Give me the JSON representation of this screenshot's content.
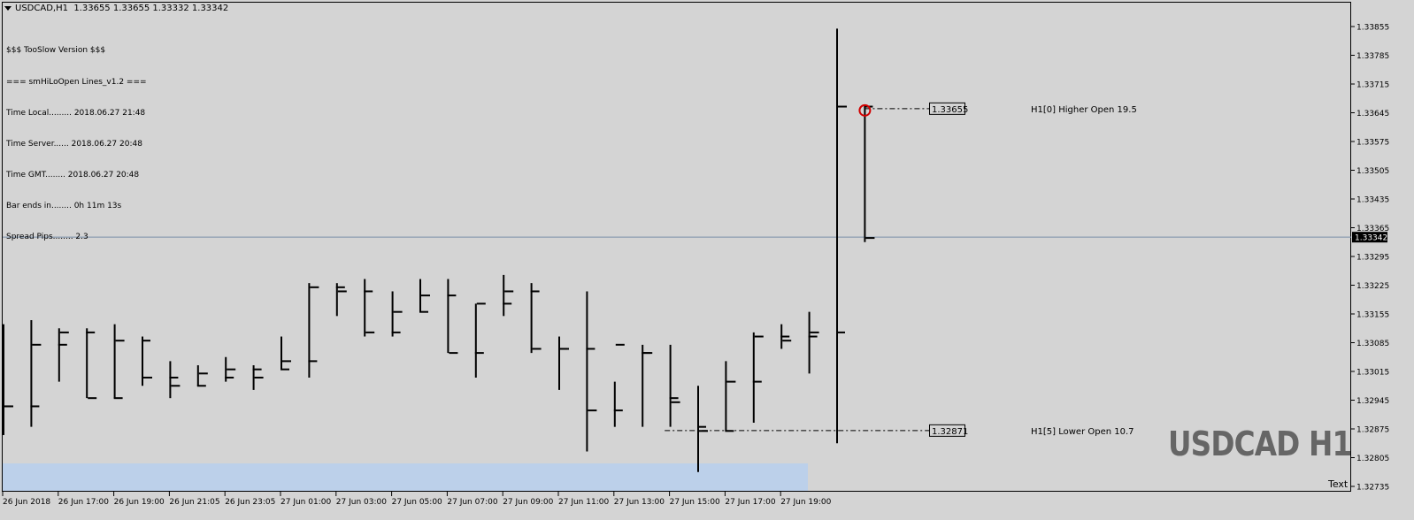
{
  "header": {
    "symbol": "USDCAD,H1",
    "ohlc": "1.33655 1.33655 1.33332 1.33342"
  },
  "info_panel": [
    "$$$ TooSlow Version $$$",
    "=== smHiLoOpen Lines_v1.2 ===",
    "Time Local......... 2018.06.27 21:48",
    "Time Server...... 2018.06.27 20:48",
    "Time GMT........ 2018.06.27 20:48",
    "Bar ends in........ 0h 11m 13s",
    "Spread Pips........ 2.3"
  ],
  "watermark": "USDCAD H1",
  "text_object": "Text",
  "colors": {
    "background": "#d4d4d4",
    "bars": "#000000",
    "bid_line": "#7a8fa8",
    "marker": "#d00000",
    "session_box": "#bcd0ea"
  },
  "chart_data": {
    "type": "ohlc",
    "y_ticks": [
      "1.33855",
      "1.33785",
      "1.33715",
      "1.33645",
      "1.33575",
      "1.33505",
      "1.33435",
      "1.33365",
      "1.33295",
      "1.33225",
      "1.33155",
      "1.33085",
      "1.33015",
      "1.32945",
      "1.32875",
      "1.32805",
      "1.32735"
    ],
    "ylim": [
      1.32735,
      1.33855
    ],
    "x_labels": [
      "26 Jun 2018",
      "26 Jun 17:00",
      "26 Jun 19:00",
      "26 Jun 21:05",
      "26 Jun 23:05",
      "27 Jun 01:00",
      "27 Jun 03:00",
      "27 Jun 05:00",
      "27 Jun 07:00",
      "27 Jun 09:00",
      "27 Jun 11:00",
      "27 Jun 13:00",
      "27 Jun 15:00",
      "27 Jun 17:00",
      "27 Jun 19:00"
    ],
    "bars": [
      [
        1.3293,
        1.3313,
        1.3286,
        1.3293
      ],
      [
        1.3293,
        1.3314,
        1.3288,
        1.3308
      ],
      [
        1.3308,
        1.3312,
        1.3299,
        1.3311
      ],
      [
        1.3311,
        1.3312,
        1.3295,
        1.3295
      ],
      [
        1.3295,
        1.3313,
        1.3295,
        1.3309
      ],
      [
        1.3309,
        1.331,
        1.3298,
        1.33
      ],
      [
        1.33,
        1.3304,
        1.3295,
        1.3298
      ],
      [
        1.3298,
        1.3303,
        1.3298,
        1.3301
      ],
      [
        1.33,
        1.3305,
        1.3299,
        1.3302
      ],
      [
        1.3302,
        1.3303,
        1.3297,
        1.33
      ],
      [
        1.3302,
        1.331,
        1.3302,
        1.3304
      ],
      [
        1.3304,
        1.3323,
        1.33,
        1.3322
      ],
      [
        1.3322,
        1.3323,
        1.3315,
        1.3321
      ],
      [
        1.3321,
        1.3324,
        1.331,
        1.3311
      ],
      [
        1.3311,
        1.3321,
        1.331,
        1.3316
      ],
      [
        1.3316,
        1.3324,
        1.3316,
        1.332
      ],
      [
        1.332,
        1.3324,
        1.3306,
        1.3306
      ],
      [
        1.3306,
        1.3318,
        1.33,
        1.3318
      ],
      [
        1.3318,
        1.3325,
        1.3315,
        1.3321
      ],
      [
        1.3321,
        1.3323,
        1.3306,
        1.3307
      ],
      [
        1.3307,
        1.331,
        1.3297,
        1.3307
      ],
      [
        1.3307,
        1.3321,
        1.3282,
        1.3292
      ],
      [
        1.3292,
        1.3299,
        1.3288,
        1.3308
      ],
      [
        1.3306,
        1.3308,
        1.3288,
        1.3306
      ],
      [
        1.3295,
        1.3308,
        1.3288,
        1.3294
      ],
      [
        1.3288,
        1.3298,
        1.3277,
        1.3287
      ],
      [
        1.3287,
        1.3304,
        1.3287,
        1.3299
      ],
      [
        1.3299,
        1.3311,
        1.3289,
        1.331
      ],
      [
        1.331,
        1.3313,
        1.3307,
        1.3309
      ],
      [
        1.331,
        1.3316,
        1.3301,
        1.3311
      ],
      [
        1.3311,
        1.3385,
        1.3284,
        1.3366
      ],
      [
        1.3366,
        1.3366,
        1.3333,
        1.3334
      ]
    ],
    "bid": 1.33342,
    "bid_label": "1.33342",
    "levels": [
      {
        "price": 1.33655,
        "price_label": "1.33655",
        "text": "H1[0] Higher Open 19.5"
      },
      {
        "price": 1.32871,
        "price_label": "1.32871",
        "text": "H1[5] Lower Open 10.7"
      }
    ]
  }
}
